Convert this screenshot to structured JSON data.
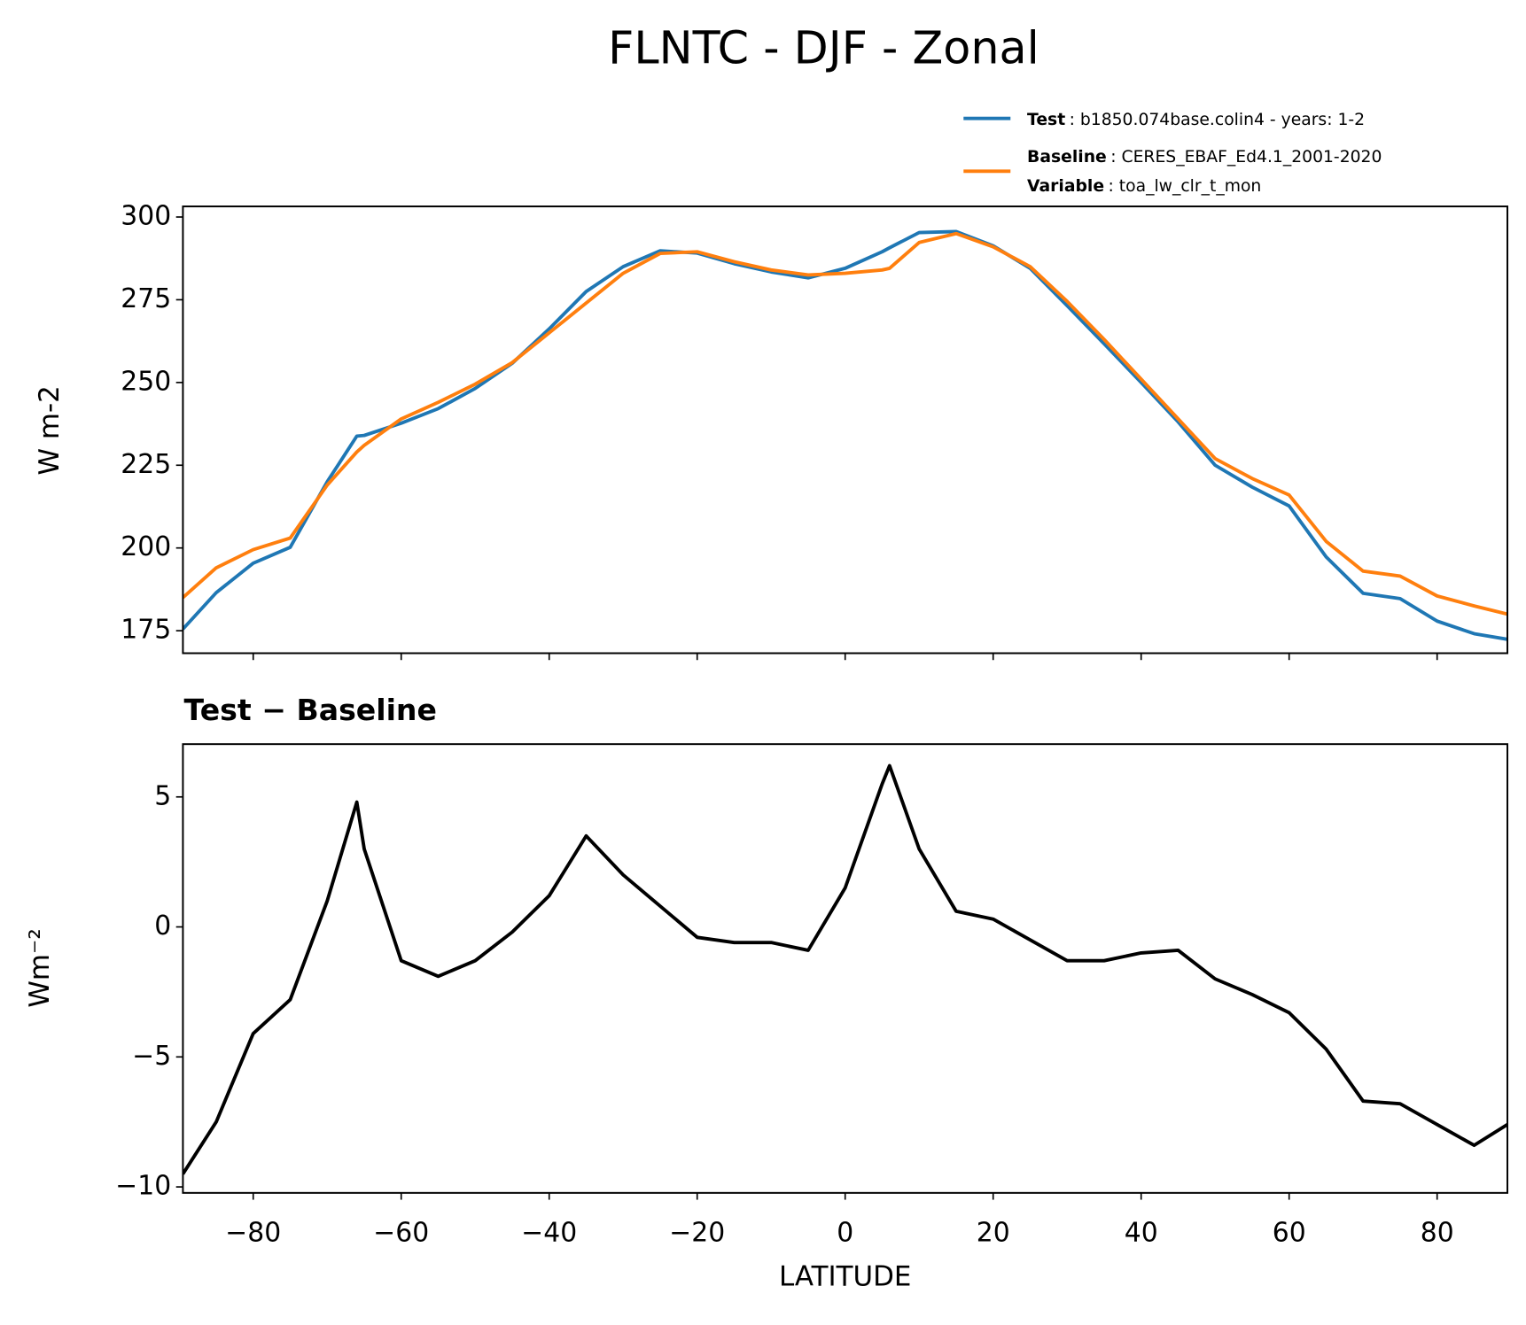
{
  "title": "FLNTC - DJF - Zonal",
  "chart_data": [
    {
      "type": "line",
      "ylabel": "W m-2",
      "x": [
        -89.5,
        -85,
        -80,
        -75,
        -70,
        -66,
        -65,
        -60,
        -55,
        -50,
        -45,
        -40,
        -35,
        -30,
        -25,
        -20,
        -15,
        -10,
        -5,
        0,
        5,
        6,
        10,
        15,
        20,
        25,
        30,
        35,
        40,
        45,
        50,
        55,
        60,
        65,
        70,
        75,
        80,
        85,
        89.5
      ],
      "series": [
        {
          "name": "Test",
          "description": ": b1850.074base.colin4 - years: 1-2",
          "color": "#1f77b4",
          "values": [
            175.5,
            186.5,
            195.4,
            200.2,
            220,
            233.8,
            234,
            237.7,
            242.1,
            248.2,
            255.8,
            266.2,
            277.5,
            285,
            289.8,
            289.1,
            285.9,
            283.4,
            281.6,
            284.5,
            289.5,
            290.7,
            295.3,
            295.6,
            291.3,
            284.5,
            273.2,
            261.7,
            250,
            238.1,
            225,
            218.4,
            212.7,
            197.3,
            186.3,
            184.7,
            177.9,
            174.1,
            172.4
          ]
        },
        {
          "name": "Baseline",
          "description": ": CERES_EBAF_Ed4.1_2001-2020",
          "color": "#ff7f0e",
          "values": [
            185,
            194,
            199.5,
            203,
            219,
            229,
            231,
            239,
            244,
            249.5,
            256,
            265,
            274,
            283,
            289,
            289.5,
            286.5,
            284,
            282.5,
            283,
            284,
            284.5,
            292.3,
            295,
            291,
            285,
            274.5,
            263,
            251,
            239,
            227,
            221,
            216,
            202,
            193,
            191.5,
            185.5,
            182.5,
            180
          ]
        }
      ],
      "variable_name": "Variable",
      "variable_description": ": toa_lw_clr_t_mon",
      "xlim": [
        -89.5,
        89.5
      ],
      "xticks": [
        -80,
        -60,
        -40,
        -20,
        0,
        20,
        40,
        60,
        80
      ],
      "ylim": [
        168.2,
        303.2
      ],
      "yticks": [
        175,
        200,
        225,
        250,
        275,
        300
      ]
    },
    {
      "type": "line",
      "title": "Test − Baseline",
      "xlabel": "LATITUDE",
      "ylabel": "Wm⁻²",
      "x": [
        -89.5,
        -85,
        -80,
        -75,
        -70,
        -66,
        -65,
        -60,
        -55,
        -50,
        -45,
        -40,
        -35,
        -30,
        -25,
        -20,
        -15,
        -10,
        -5,
        0,
        5,
        6,
        10,
        15,
        20,
        25,
        30,
        35,
        40,
        45,
        50,
        55,
        60,
        65,
        70,
        75,
        80,
        85,
        89.5
      ],
      "series": [
        {
          "color": "#000000",
          "values": [
            -9.5,
            -7.5,
            -4.1,
            -2.8,
            1.0,
            4.8,
            3.0,
            -1.3,
            -1.9,
            -1.3,
            -0.2,
            1.2,
            3.5,
            2.0,
            0.8,
            -0.4,
            -0.6,
            -0.6,
            -0.9,
            1.5,
            5.5,
            6.2,
            3.0,
            0.6,
            0.3,
            -0.5,
            -1.3,
            -1.3,
            -1.0,
            -0.9,
            -2.0,
            -2.6,
            -3.3,
            -4.7,
            -6.7,
            -6.8,
            -7.6,
            -8.4,
            -7.6
          ]
        }
      ],
      "xlim": [
        -89.5,
        89.5
      ],
      "xticks": [
        {
          "value": -80,
          "label": "−80"
        },
        {
          "value": -60,
          "label": "−60"
        },
        {
          "value": -40,
          "label": "−40"
        },
        {
          "value": -20,
          "label": "−20"
        },
        0,
        20,
        40,
        60,
        80
      ],
      "ylim": [
        -10.23,
        7.03
      ],
      "yticks": [
        {
          "value": -10,
          "label": "−10"
        },
        {
          "value": -5,
          "label": "−5"
        },
        0,
        5
      ]
    }
  ]
}
